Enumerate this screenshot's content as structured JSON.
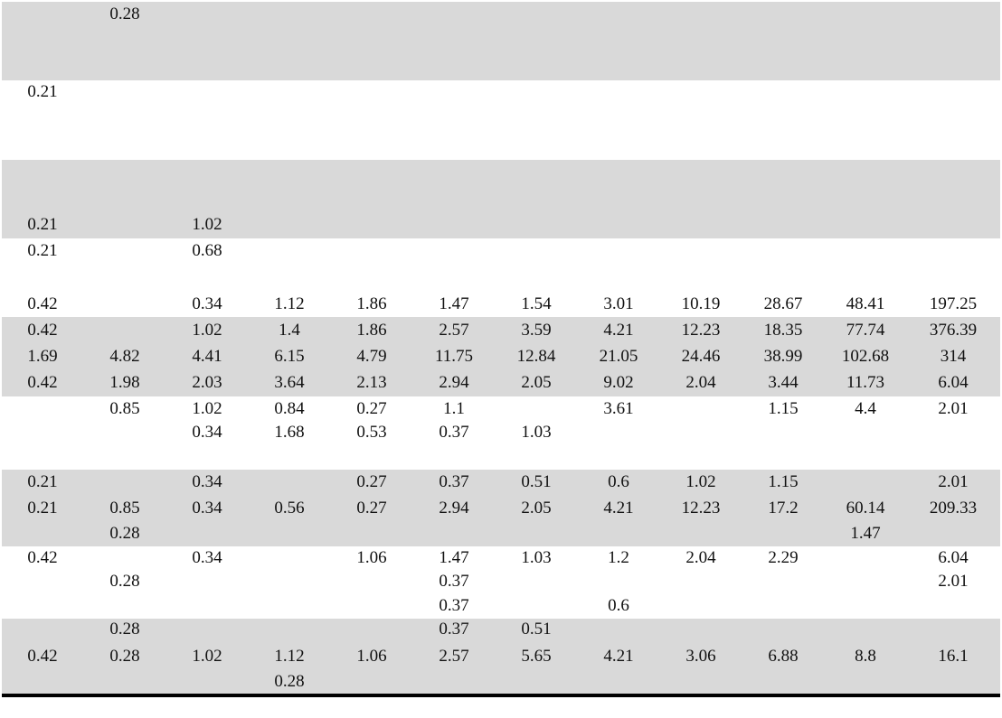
{
  "rows": [
    {
      "id": "r1",
      "cells": [
        "",
        "0.28",
        "",
        "",
        "",
        "",
        "",
        "",
        "",
        "",
        "",
        ""
      ]
    },
    {
      "id": "r2",
      "cells": [
        "0.21",
        "",
        "",
        "",
        "",
        "",
        "",
        "",
        "",
        "",
        "",
        ""
      ]
    },
    {
      "id": "r3",
      "cells": [
        "0.21",
        "",
        "1.02",
        "",
        "",
        "",
        "",
        "",
        "",
        "",
        "",
        ""
      ]
    },
    {
      "id": "r4",
      "cells": [
        "0.21",
        "",
        "0.68",
        "",
        "",
        "",
        "",
        "",
        "",
        "",
        "",
        ""
      ]
    },
    {
      "id": "r5",
      "cells": [
        "0.42",
        "",
        "0.34",
        "1.12",
        "1.86",
        "1.47",
        "1.54",
        "3.01",
        "10.19",
        "28.67",
        "48.41",
        "197.25"
      ]
    },
    {
      "id": "r6",
      "cells": [
        "0.42",
        "",
        "1.02",
        "1.4",
        "1.86",
        "2.57",
        "3.59",
        "4.21",
        "12.23",
        "18.35",
        "77.74",
        "376.39"
      ]
    },
    {
      "id": "r7",
      "cells": [
        "1.69",
        "4.82",
        "4.41",
        "6.15",
        "4.79",
        "11.75",
        "12.84",
        "21.05",
        "24.46",
        "38.99",
        "102.68",
        "314"
      ]
    },
    {
      "id": "r8",
      "cells": [
        "0.42",
        "1.98",
        "2.03",
        "3.64",
        "2.13",
        "2.94",
        "2.05",
        "9.02",
        "2.04",
        "3.44",
        "11.73",
        "6.04"
      ]
    },
    {
      "id": "r9",
      "cells": [
        "",
        "0.85",
        "1.02",
        "0.84",
        "0.27",
        "1.1",
        "",
        "3.61",
        "",
        "1.15",
        "4.4",
        "2.01"
      ]
    },
    {
      "id": "r10",
      "cells": [
        "",
        "",
        "0.34",
        "1.68",
        "0.53",
        "0.37",
        "1.03",
        "",
        "",
        "",
        "",
        ""
      ]
    },
    {
      "id": "r11",
      "cells": [
        "0.21",
        "",
        "0.34",
        "",
        "0.27",
        "0.37",
        "0.51",
        "0.6",
        "1.02",
        "1.15",
        "",
        "2.01"
      ]
    },
    {
      "id": "r12",
      "cells": [
        "0.21",
        "0.85",
        "0.34",
        "0.56",
        "0.27",
        "2.94",
        "2.05",
        "4.21",
        "12.23",
        "17.2",
        "60.14",
        "209.33"
      ]
    },
    {
      "id": "r13",
      "cells": [
        "",
        "0.28",
        "",
        "",
        "",
        "",
        "",
        "",
        "",
        "",
        "1.47",
        ""
      ]
    },
    {
      "id": "r14",
      "cells": [
        "0.42",
        "",
        "0.34",
        "",
        "1.06",
        "1.47",
        "1.03",
        "1.2",
        "2.04",
        "2.29",
        "",
        "6.04"
      ]
    },
    {
      "id": "r15",
      "cells": [
        "",
        "0.28",
        "",
        "",
        "",
        "0.37",
        "",
        "",
        "",
        "",
        "",
        "2.01"
      ]
    },
    {
      "id": "r16",
      "cells": [
        "",
        "",
        "",
        "",
        "",
        "0.37",
        "",
        "0.6",
        "",
        "",
        "",
        ""
      ]
    },
    {
      "id": "r17",
      "cells": [
        "",
        "0.28",
        "",
        "",
        "",
        "0.37",
        "0.51",
        "",
        "",
        "",
        "",
        ""
      ]
    },
    {
      "id": "r18",
      "cells": [
        "0.42",
        "0.28",
        "1.02",
        "1.12",
        "1.06",
        "2.57",
        "5.65",
        "4.21",
        "3.06",
        "6.88",
        "8.8",
        "16.1"
      ]
    },
    {
      "id": "r19",
      "cells": [
        "",
        "",
        "",
        "0.28",
        "",
        "",
        "",
        "",
        "",
        "",
        "",
        ""
      ]
    }
  ]
}
